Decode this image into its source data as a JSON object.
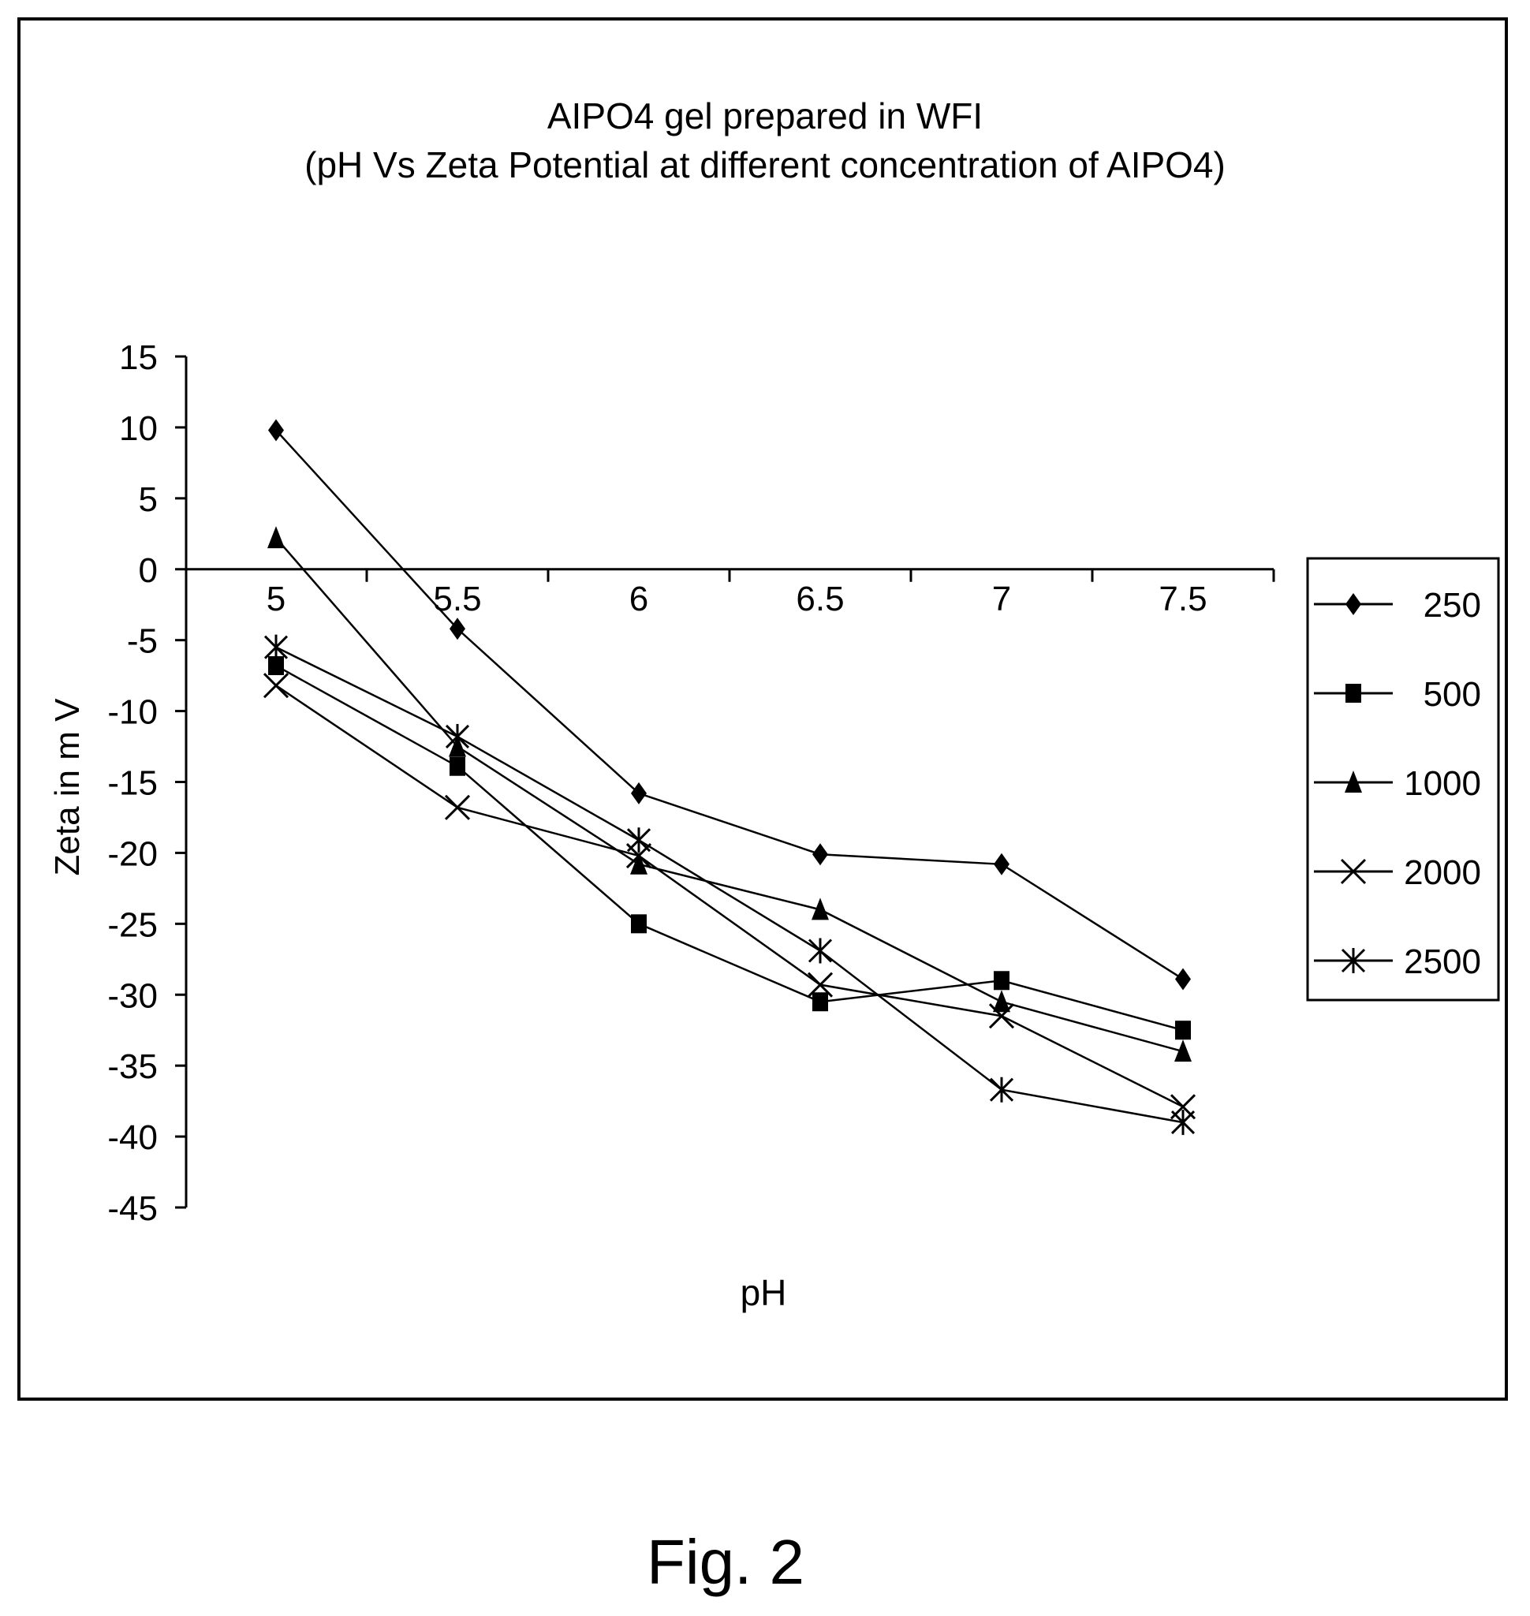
{
  "figure_caption": "Fig. 2",
  "chart_data": {
    "type": "line",
    "title": "AIPO4 gel prepared in WFI",
    "subtitle": "(pH Vs Zeta Potential at different concentration of AIPO4)",
    "xlabel": "pH",
    "ylabel": "Zeta in m V",
    "categories": [
      "5",
      "5.5",
      "6",
      "6.5",
      "7",
      "7.5"
    ],
    "ylim": [
      -45,
      15
    ],
    "ytick_step": 5,
    "yticks": [
      "15",
      "10",
      "5",
      "0",
      "-5",
      "-10",
      "-15",
      "-20",
      "-25",
      "-30",
      "-35",
      "-40",
      "-45"
    ],
    "grid": false,
    "legend_position": "right",
    "series": [
      {
        "name": "250",
        "marker": "diamond",
        "values": [
          9.8,
          -4.2,
          -15.8,
          -20.1,
          -20.8,
          -28.9
        ]
      },
      {
        "name": "500",
        "marker": "square",
        "values": [
          -6.8,
          -13.9,
          -25,
          -30.5,
          -29,
          -32.5
        ]
      },
      {
        "name": "1000",
        "marker": "triangle",
        "values": [
          2.2,
          -12.5,
          -20.8,
          -24,
          -30.5,
          -34
        ]
      },
      {
        "name": "2000",
        "marker": "x",
        "values": [
          -8.2,
          -16.8,
          -20.2,
          -29.3,
          -31.5,
          -37.9
        ]
      },
      {
        "name": "2500",
        "marker": "star",
        "values": [
          -5.5,
          -11.8,
          -19.1,
          -26.9,
          -36.7,
          -39
        ]
      }
    ]
  }
}
